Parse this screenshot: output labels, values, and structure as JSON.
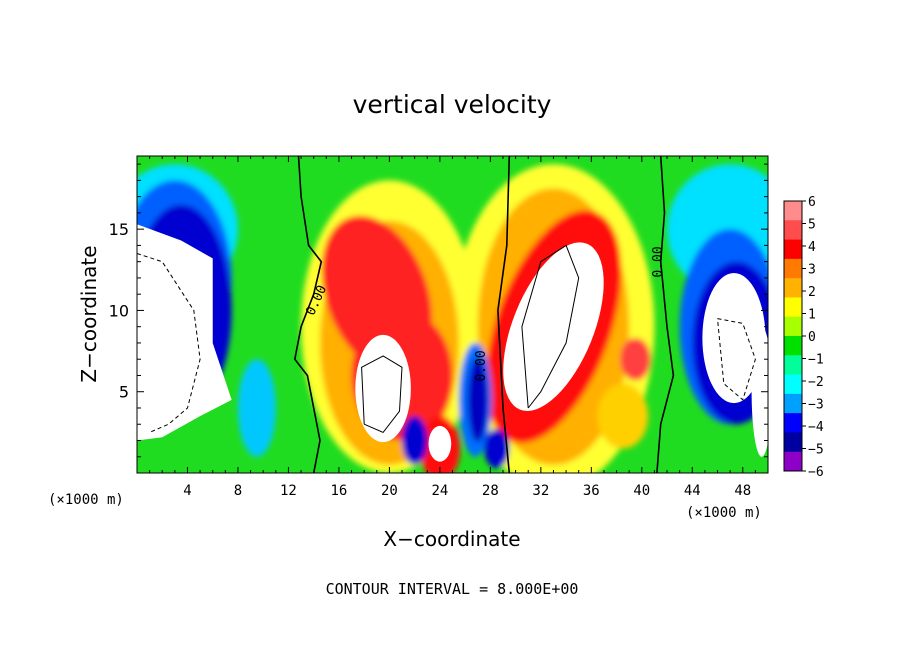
{
  "chart_data": {
    "type": "heatmap",
    "title": "vertical velocity",
    "xlabel": "X−coordinate",
    "ylabel": "Z−coordinate",
    "x_unit_left": "(×1000 m)",
    "x_unit_right": "(×1000 m)",
    "footer": "CONTOUR INTERVAL = 8.000E+00",
    "xlim": [
      0,
      50
    ],
    "ylim": [
      0,
      19.5
    ],
    "x_ticks": [
      4,
      8,
      12,
      16,
      20,
      24,
      28,
      32,
      36,
      40,
      44,
      48
    ],
    "x_tick_labels": [
      "4",
      "8",
      "12",
      "16",
      "20",
      "24",
      "28",
      "32",
      "36",
      "40",
      "44",
      "48"
    ],
    "y_ticks": [
      5,
      10,
      15
    ],
    "y_tick_labels": [
      "5",
      "10",
      "15"
    ],
    "colorbar": {
      "min": -6,
      "max": 6,
      "labels": [
        "6",
        "5",
        "4",
        "3",
        "2",
        "1",
        "0",
        "−1",
        "−2",
        "−3",
        "−4",
        "−5",
        "−6"
      ],
      "colors": [
        "#ff8c8c",
        "#ff4d4d",
        "#ff0000",
        "#ff7a00",
        "#ffb300",
        "#ffff00",
        "#a8ff00",
        "#00e000",
        "#00ff9a",
        "#00ffff",
        "#00a0ff",
        "#0000ff",
        "#0000a0",
        "#8c00c8"
      ],
      "over_color": "#ffffff",
      "under_color": "#ffffff"
    },
    "contour_labels": [
      "0.00",
      "0.00",
      "0.00"
    ],
    "features": [
      {
        "kind": "updraft",
        "x": 20,
        "z": 5.5,
        "peak": 6.0
      },
      {
        "kind": "updraft",
        "x": 33,
        "z": 9.0,
        "peak": 6.0
      },
      {
        "kind": "updraft",
        "x": 24,
        "z": 1.5,
        "peak": 6.0
      },
      {
        "kind": "updraft",
        "x": 19,
        "z": 12.5,
        "peak": 5.0
      },
      {
        "kind": "downdraft",
        "x": 2.5,
        "z": 9.0,
        "peak": -6.0
      },
      {
        "kind": "downdraft",
        "x": 47.5,
        "z": 8.0,
        "peak": -6.0
      },
      {
        "kind": "downdraft",
        "x": 27,
        "z": 5.0,
        "peak": -5.0
      }
    ]
  }
}
